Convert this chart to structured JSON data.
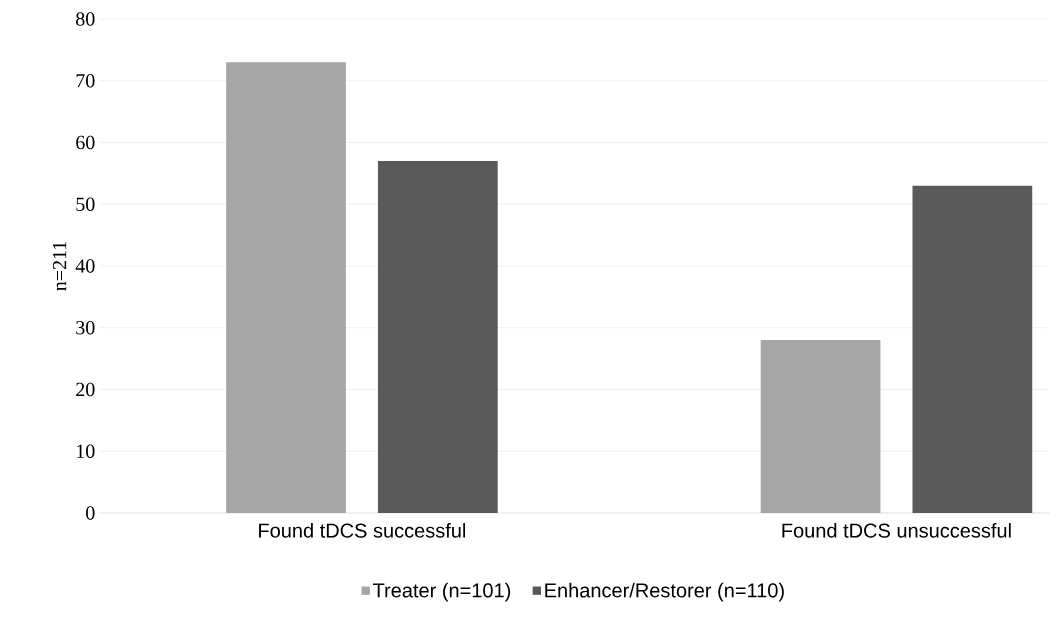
{
  "chart_data": {
    "type": "bar",
    "ylabel": "n=211",
    "categories": [
      "Found tDCS successful",
      "Found tDCS unsuccessful"
    ],
    "series": [
      {
        "name": "Treater (n=101)",
        "color": "#a6a6a6",
        "values": [
          73,
          28
        ]
      },
      {
        "name": "Enhancer/Restorer (n=110)",
        "color": "#595959",
        "values": [
          57,
          53
        ]
      }
    ],
    "ylim": [
      0,
      80
    ],
    "yticks": [
      0,
      10,
      20,
      30,
      40,
      50,
      60,
      70,
      80
    ],
    "grid": "y",
    "legend": "bottom"
  }
}
